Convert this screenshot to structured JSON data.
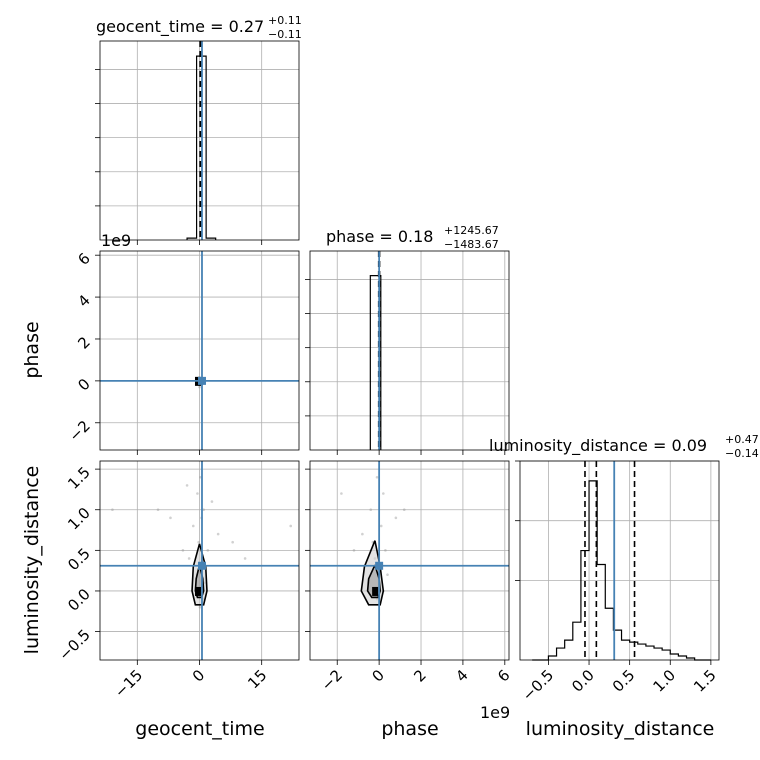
{
  "chart_data": {
    "type": "corner",
    "parameters": [
      "geocent_time",
      "phase",
      "luminosity_distance"
    ],
    "grid": true,
    "colors": {
      "truth": "#4682b4",
      "lines": "#000000",
      "samples": "#9a9a9a"
    },
    "diagonal": [
      {
        "name": "geocent_time",
        "title": {
          "prefix": "geocent_time = 0.27",
          "sup": "+0.11",
          "sub": "−0.11"
        },
        "xlim": [
          -24,
          24
        ],
        "bins": [
          {
            "x0": -3.0,
            "x1": -0.7,
            "count": 0.01
          },
          {
            "x0": -0.7,
            "x1": 1.6,
            "count": 0.97
          },
          {
            "x0": 1.6,
            "x1": 3.9,
            "count": 0.01
          }
        ],
        "ylim": [
          0,
          1.05
        ],
        "quantiles": [
          0.16,
          0.27,
          0.38
        ],
        "truth": 0.6,
        "ytick_values": [
          0.18,
          0.36,
          0.54,
          0.72,
          0.9
        ]
      },
      {
        "name": "phase",
        "title": {
          "prefix": "phase = 0.18",
          "sup": "+1245.67",
          "sub": "−1483.67"
        },
        "xlim": [
          -3.3,
          6.2
        ],
        "bins": [
          {
            "x0": -0.42,
            "x1": 0.02,
            "count": 0.92
          },
          {
            "x0": 0.02,
            "x1": 0.08,
            "count": 0.92
          }
        ],
        "ylim": [
          0,
          1.05
        ],
        "quantiles": [
          -0.02,
          0.0,
          0.02
        ],
        "truth": 0.0,
        "ytick_values": [
          0.18,
          0.36,
          0.54,
          0.72,
          0.9
        ]
      },
      {
        "name": "luminosity_distance",
        "title": {
          "prefix": "luminosity_distance = 0.09",
          "sup": "+0.47",
          "sub": "−0.14"
        },
        "xlim": [
          -0.85,
          1.6
        ],
        "bins": [
          {
            "x0": -0.7,
            "x1": -0.6,
            "count": 0.0
          },
          {
            "x0": -0.6,
            "x1": -0.5,
            "count": 0.0
          },
          {
            "x0": -0.5,
            "x1": -0.4,
            "count": 0.02
          },
          {
            "x0": -0.4,
            "x1": -0.3,
            "count": 0.06
          },
          {
            "x0": -0.3,
            "x1": -0.2,
            "count": 0.1
          },
          {
            "x0": -0.2,
            "x1": -0.1,
            "count": 0.19
          },
          {
            "x0": -0.1,
            "x1": 0.0,
            "count": 0.55
          },
          {
            "x0": 0.0,
            "x1": 0.1,
            "count": 0.9
          },
          {
            "x0": 0.1,
            "x1": 0.2,
            "count": 0.48
          },
          {
            "x0": 0.2,
            "x1": 0.3,
            "count": 0.26
          },
          {
            "x0": 0.3,
            "x1": 0.4,
            "count": 0.15
          },
          {
            "x0": 0.4,
            "x1": 0.5,
            "count": 0.1
          },
          {
            "x0": 0.5,
            "x1": 0.6,
            "count": 0.09
          },
          {
            "x0": 0.6,
            "x1": 0.7,
            "count": 0.08
          },
          {
            "x0": 0.7,
            "x1": 0.8,
            "count": 0.07
          },
          {
            "x0": 0.8,
            "x1": 0.9,
            "count": 0.06
          },
          {
            "x0": 0.9,
            "x1": 1.0,
            "count": 0.05
          },
          {
            "x0": 1.0,
            "x1": 1.1,
            "count": 0.03
          },
          {
            "x0": 1.1,
            "x1": 1.2,
            "count": 0.02
          },
          {
            "x0": 1.2,
            "x1": 1.3,
            "count": 0.01
          },
          {
            "x0": 1.3,
            "x1": 1.4,
            "count": 0.0
          },
          {
            "x0": 1.4,
            "x1": 1.5,
            "count": 0.0
          }
        ],
        "ylim": [
          0,
          1.0
        ],
        "quantiles": [
          -0.05,
          0.09,
          0.56
        ],
        "truth": 0.31,
        "ytick_values": [
          0.4,
          0.7,
          1.0
        ]
      }
    ],
    "offdiagonal": [
      {
        "x_param": "geocent_time",
        "y_param": "phase",
        "xlim": [
          -24,
          24
        ],
        "ylim": [
          -3.3,
          6.2
        ],
        "truth": [
          0.6,
          0.0
        ],
        "samples": [
          [
            -0.2,
            -0.1
          ],
          [
            0.3,
            0.05
          ],
          [
            0.1,
            -0.2
          ],
          [
            -0.4,
            0.02
          ],
          [
            0.5,
            0.1
          ],
          [
            0.0,
            -0.3
          ],
          [
            -0.1,
            0.15
          ],
          [
            0.2,
            -0.05
          ]
        ],
        "contours": []
      },
      {
        "x_param": "geocent_time",
        "y_param": "luminosity_distance",
        "xlim": [
          -24,
          24
        ],
        "ylim": [
          -0.85,
          1.6
        ],
        "truth": [
          0.6,
          0.31
        ],
        "samples": [
          [
            0.2,
            1.4
          ],
          [
            -0.5,
            1.2
          ],
          [
            1.0,
            1.0
          ],
          [
            -1.5,
            0.8
          ],
          [
            0.5,
            0.9
          ],
          [
            -0.2,
            0.6
          ],
          [
            2.0,
            0.5
          ],
          [
            -2.5,
            0.4
          ],
          [
            0.4,
            0.3
          ],
          [
            -0.6,
            0.2
          ],
          [
            1.2,
            0.1
          ],
          [
            -0.3,
            0.0
          ],
          [
            0.8,
            -0.1
          ],
          [
            0.1,
            -0.2
          ],
          [
            -4.0,
            0.5
          ],
          [
            4.5,
            0.7
          ],
          [
            -7.0,
            0.9
          ],
          [
            8.0,
            0.6
          ],
          [
            -10.0,
            1.0
          ],
          [
            11.0,
            0.4
          ],
          [
            -3.0,
            1.3
          ],
          [
            3.0,
            1.1
          ],
          [
            -21.0,
            1.0
          ],
          [
            22.0,
            0.8
          ]
        ],
        "contours": [
          [
            [
              0.0,
              0.58
            ],
            [
              -1.5,
              0.3
            ],
            [
              -1.8,
              0.0
            ],
            [
              -1.0,
              -0.17
            ],
            [
              1.0,
              -0.17
            ],
            [
              1.8,
              0.0
            ],
            [
              1.5,
              0.3
            ],
            [
              0.0,
              0.58
            ]
          ],
          [
            [
              0.0,
              0.32
            ],
            [
              -0.8,
              0.15
            ],
            [
              -1.0,
              0.0
            ],
            [
              -0.5,
              -0.08
            ],
            [
              0.5,
              -0.08
            ],
            [
              1.0,
              0.0
            ],
            [
              0.8,
              0.15
            ],
            [
              0.0,
              0.32
            ]
          ]
        ]
      },
      {
        "x_param": "phase",
        "y_param": "luminosity_distance",
        "xlim": [
          -3.3,
          6.2
        ],
        "ylim": [
          -0.85,
          1.6
        ],
        "truth": [
          0.0,
          0.31
        ],
        "samples": [
          [
            -0.1,
            1.4
          ],
          [
            0.2,
            1.2
          ],
          [
            -0.4,
            1.0
          ],
          [
            0.1,
            0.8
          ],
          [
            -0.3,
            0.6
          ],
          [
            0.3,
            0.5
          ],
          [
            -1.8,
            1.2
          ],
          [
            1.2,
            1.0
          ],
          [
            -0.2,
            0.4
          ],
          [
            0.4,
            0.2
          ],
          [
            -0.5,
            0.1
          ],
          [
            0.2,
            0.0
          ],
          [
            -0.1,
            -0.1
          ],
          [
            -0.8,
            0.7
          ],
          [
            0.8,
            0.9
          ],
          [
            -1.2,
            0.5
          ]
        ],
        "contours": [
          [
            [
              -0.2,
              0.62
            ],
            [
              -0.7,
              0.3
            ],
            [
              -0.85,
              0.0
            ],
            [
              -0.5,
              -0.17
            ],
            [
              0.05,
              -0.17
            ],
            [
              0.2,
              0.0
            ],
            [
              0.05,
              0.3
            ],
            [
              -0.2,
              0.62
            ]
          ],
          [
            [
              -0.2,
              0.32
            ],
            [
              -0.5,
              0.15
            ],
            [
              -0.55,
              0.0
            ],
            [
              -0.35,
              -0.08
            ],
            [
              -0.05,
              -0.08
            ],
            [
              0.05,
              0.0
            ],
            [
              0.0,
              0.15
            ],
            [
              -0.2,
              0.32
            ]
          ]
        ]
      }
    ],
    "axes": {
      "geocent_time": {
        "label": "geocent_time",
        "ticks": [
          -15,
          0,
          15
        ],
        "tick_labels": [
          "−15",
          "0",
          "15"
        ]
      },
      "phase_x": {
        "label": "phase",
        "ticks": [
          -2,
          0,
          2,
          4,
          6
        ],
        "tick_labels": [
          "−2",
          "0",
          "2",
          "4",
          "6"
        ],
        "offset": "1e9"
      },
      "phase_y": {
        "label": "phase",
        "ticks": [
          -2,
          0,
          2,
          4,
          6
        ],
        "tick_labels": [
          "−2",
          "0",
          "2",
          "4",
          "6"
        ],
        "offset": "1e9"
      },
      "luminosity_distance_x": {
        "label": "luminosity_distance",
        "ticks": [
          -0.5,
          0.0,
          0.5,
          1.0,
          1.5
        ],
        "tick_labels": [
          "−0.5",
          "0.0",
          "0.5",
          "1.0",
          "1.5"
        ]
      },
      "luminosity_distance_y": {
        "label": "luminosity_distance",
        "ticks": [
          -0.5,
          0.0,
          0.5,
          1.0,
          1.5
        ],
        "tick_labels": [
          "−0.5",
          "0.0",
          "0.5",
          "1.0",
          "1.5"
        ]
      }
    }
  }
}
